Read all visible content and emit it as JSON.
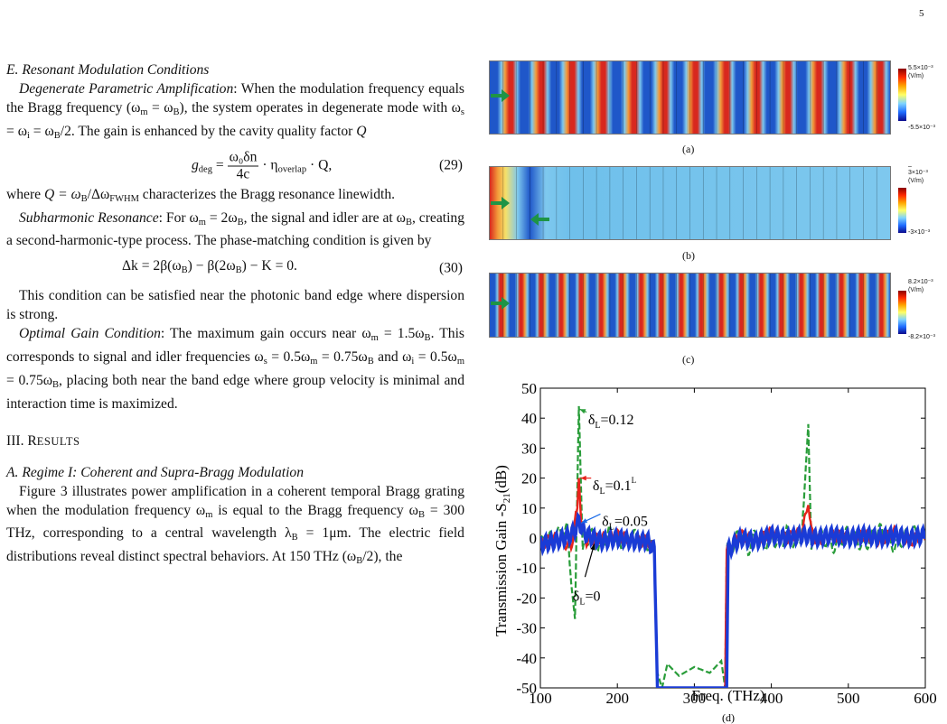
{
  "page_number": "5",
  "left": {
    "section_e_title": "E. Resonant Modulation Conditions",
    "p1_title": "Degenerate Parametric Amplification",
    "p1_text": ": When the modulation frequency equals the Bragg frequency (ω",
    "p1_rest": "), the system operates in degenerate mode with ω",
    "p1_tail": "/2. The gain is enhanced by the cavity quality factor ",
    "eq29": {
      "lhs": "g",
      "lhs_sub": "deg",
      "num": "ω₀δn",
      "den": "4c",
      "mid": " · η",
      "mid_sub": "overlap",
      "tail": " · Q,",
      "number": "(29)"
    },
    "p2_a": "where ",
    "p2_b": "Q = ω",
    "p2_c": "/Δω",
    "p2_d": " characterizes the Bragg resonance linewidth.",
    "p3_title": "Subharmonic Resonance",
    "p3_a": ": For ω",
    "p3_b": " = 2ω",
    "p3_c": ", the signal and idler are at ω",
    "p3_d": ", creating a second-harmonic-type process. The phase-matching condition is given by",
    "eq30": {
      "text": "Δk = 2β(ω",
      "t2": ") − β(2ω",
      "t3": ") − K = 0.",
      "number": "(30)"
    },
    "p4": "This condition can be satisfied near the photonic band edge where dispersion is strong.",
    "p5_title": "Optimal Gain Condition",
    "p5_a": ": The maximum gain occurs near ω",
    "p5_b": " = 1.5ω",
    "p5_c": ". This corresponds to signal and idler frequencies ω",
    "p5_d": " = 0.5ω",
    "p5_e": " = 0.75ω",
    "p5_f": " and ω",
    "p5_g": " = 0.5ω",
    "p5_h": " = 0.75ω",
    "p5_i": ", placing both near the band edge where group velocity is minimal and interaction time is maximized.",
    "section_3_num": "III. R",
    "section_3_rest": "ESULTS",
    "section_a_title": "A. Regime I: Coherent and Supra-Bragg Modulation",
    "p6_a": "Figure 3 illustrates power amplification in a coherent temporal Bragg grating when the modulation frequency ω",
    "p6_b": " is equal to the Bragg frequency ω",
    "p6_c": " = 300 THz, corresponding to a central wavelength λ",
    "p6_d": " = 1μm. The electric field distributions reveal distinct spectral behaviors. At 150 THz (ω",
    "p6_e": "/2), the",
    "sub_m": "m",
    "sub_B": "B",
    "sub_s": "s",
    "sub_i": "i",
    "sub_FWHM": "FWHM"
  },
  "panels": [
    {
      "label": "(a)",
      "cbar_top": "5.5×10⁻³",
      "cbar_unit": "(V/m)",
      "cbar_bottom": "-5.5×10⁻³"
    },
    {
      "label": "(b)",
      "cbar_top": "3×10⁻³",
      "cbar_unit": "(V/m)",
      "cbar_bottom": "-3×10⁻³",
      "cbar_top_mark": "–"
    },
    {
      "label": "(c)",
      "cbar_top": "8.2×10⁻³",
      "cbar_unit": "(V/m)",
      "cbar_bottom": "-8.2×10⁻³"
    }
  ],
  "chart_data": {
    "type": "line",
    "label": "(d)",
    "xlabel": "Freq. (THz)",
    "ylabel": "Transmission Gain -S21(dB)",
    "xlim": [
      100,
      600
    ],
    "ylim": [
      -50,
      50
    ],
    "xticks": [
      100,
      200,
      300,
      400,
      500,
      600
    ],
    "yticks": [
      50,
      40,
      30,
      20,
      10,
      0,
      -10,
      -20,
      -30,
      -40,
      -50
    ],
    "series": [
      {
        "name": "δL=0.12",
        "color": "#2a9d3a",
        "dash": true,
        "points": [
          [
            100,
            -2
          ],
          [
            120,
            1
          ],
          [
            135,
            3
          ],
          [
            140,
            -15
          ],
          [
            145,
            -27
          ],
          [
            150,
            44
          ],
          [
            155,
            -5
          ],
          [
            165,
            2
          ],
          [
            175,
            -3
          ],
          [
            190,
            2
          ],
          [
            205,
            -2
          ],
          [
            220,
            1
          ],
          [
            240,
            -2
          ],
          [
            248,
            -4
          ],
          [
            252,
            -45
          ],
          [
            258,
            -50
          ],
          [
            265,
            -42
          ],
          [
            280,
            -46
          ],
          [
            300,
            -43
          ],
          [
            320,
            -45
          ],
          [
            335,
            -41
          ],
          [
            340,
            -50
          ],
          [
            342,
            -4
          ],
          [
            350,
            -3
          ],
          [
            360,
            3
          ],
          [
            370,
            -4
          ],
          [
            380,
            2
          ],
          [
            390,
            -3
          ],
          [
            400,
            1
          ],
          [
            410,
            -3
          ],
          [
            420,
            2
          ],
          [
            430,
            -3
          ],
          [
            440,
            2
          ],
          [
            448,
            38
          ],
          [
            452,
            -5
          ],
          [
            460,
            2
          ],
          [
            480,
            -3
          ],
          [
            500,
            2
          ],
          [
            520,
            -3
          ],
          [
            540,
            3
          ],
          [
            560,
            -3
          ],
          [
            580,
            2
          ],
          [
            600,
            1
          ]
        ]
      },
      {
        "name": "δL=0.1",
        "color": "#e8231b",
        "dash": false,
        "points": [
          [
            100,
            -2
          ],
          [
            120,
            0
          ],
          [
            140,
            -3
          ],
          [
            148,
            10
          ],
          [
            150,
            20
          ],
          [
            153,
            5
          ],
          [
            160,
            -1
          ],
          [
            180,
            0
          ],
          [
            200,
            1
          ],
          [
            220,
            -1
          ],
          [
            240,
            -1
          ],
          [
            248,
            -4
          ],
          [
            252,
            -50
          ],
          [
            340,
            -50
          ],
          [
            342,
            -4
          ],
          [
            360,
            1
          ],
          [
            380,
            -1
          ],
          [
            400,
            2
          ],
          [
            420,
            0
          ],
          [
            440,
            2
          ],
          [
            448,
            11
          ],
          [
            452,
            2
          ],
          [
            460,
            -1
          ],
          [
            480,
            1
          ],
          [
            500,
            0
          ],
          [
            520,
            1
          ],
          [
            540,
            -1
          ],
          [
            560,
            2
          ],
          [
            580,
            -1
          ],
          [
            600,
            1
          ]
        ]
      },
      {
        "name": "δL=0.05",
        "color": "#1a3bd6",
        "dash": false,
        "points": [
          [
            100,
            -2
          ],
          [
            120,
            -1
          ],
          [
            140,
            1
          ],
          [
            148,
            4
          ],
          [
            150,
            6
          ],
          [
            154,
            3
          ],
          [
            160,
            1
          ],
          [
            180,
            -1
          ],
          [
            200,
            0
          ],
          [
            220,
            -1
          ],
          [
            240,
            -1
          ],
          [
            248,
            -4
          ],
          [
            252,
            -50
          ],
          [
            342,
            -50
          ],
          [
            344,
            -4
          ],
          [
            360,
            0
          ],
          [
            380,
            -1
          ],
          [
            400,
            1
          ],
          [
            420,
            0
          ],
          [
            440,
            1
          ],
          [
            460,
            0
          ],
          [
            480,
            1
          ],
          [
            500,
            0
          ],
          [
            520,
            1
          ],
          [
            540,
            0
          ],
          [
            560,
            1
          ],
          [
            580,
            0
          ],
          [
            600,
            1
          ]
        ]
      },
      {
        "name": "δL=0",
        "color": "#000000",
        "dash": false,
        "points": [
          [
            100,
            0
          ],
          [
            600,
            0
          ]
        ]
      }
    ],
    "annotations": [
      {
        "text": "δL=0.12",
        "x": 155,
        "y": 43
      },
      {
        "text": "δL=0.1",
        "x": 160,
        "y": 21
      },
      {
        "text": "δL=0.05",
        "x": 160,
        "y": 7
      },
      {
        "text": "δL=0",
        "x": 140,
        "y": -18
      }
    ],
    "annotation_text": {
      "a012": "δ",
      "a012_sub": "L",
      "a012_val": "=0.12",
      "a01_val": "=0.1",
      "a01_tail": "L",
      "a005_val": "=0.05",
      "a0_val": "=0"
    }
  },
  "colors": {
    "wave_blue": "#1f57c9",
    "wave_light": "#7ec8ee",
    "wave_red": "#d8281e",
    "wave_orange": "#f39b3a",
    "arrow_green": "#1e9446"
  }
}
